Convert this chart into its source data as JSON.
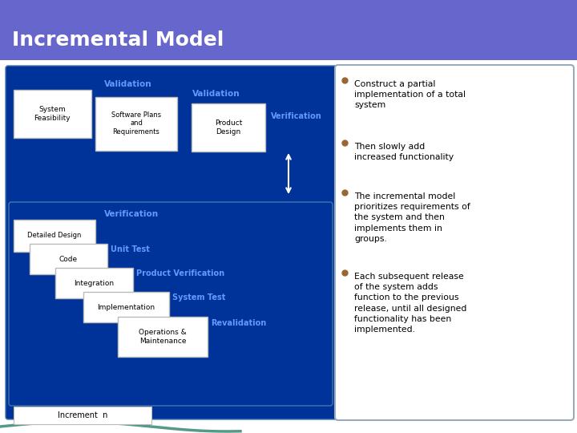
{
  "title": "Incremental Model",
  "title_bg": "#6666CC",
  "title_color": "#FFFFFF",
  "title_fontsize": 18,
  "slide_bg": "#FFFFFF",
  "diagram_bg": "#003399",
  "right_panel_bg": "#FFFFFF",
  "bullet_marker_color": "#996633",
  "bullet_points": [
    "Construct a partial\nimplementation of a total\nsystem",
    "Then slowly add\nincreased functionality",
    "The incremental model\nprioritizes requirements of\nthe system and then\nimplements them in\ngroups.",
    "Each subsequent release\nof the system adds\nfunction to the previous\nrelease, until all designed\nfunctionality has been\nimplemented."
  ],
  "box_labels_top": [
    "System\nFeasibility",
    "Software Plans\nand\nRequirements",
    "Product\nDesign"
  ],
  "box_labels_bottom": [
    "Detailed Design",
    "Code",
    "Integration",
    "Implementation",
    "Operations &\nMaintenance"
  ],
  "label_validation1": "Validation",
  "label_validation2": "Validation",
  "label_verification_top": "Verification",
  "label_verification_bot": "Verification",
  "label_unit_test": "Unit Test",
  "label_product_ver": "Product Verification",
  "label_system_test": "System Test",
  "label_revalidation": "Revalidation",
  "label_increment": "Increment  n",
  "label_color_blue": "#6699FF",
  "white_box": "#FFFFFF",
  "text_dark": "#000000",
  "divider_color": "#AAAACC",
  "teal_color": "#559988",
  "inner_box_border": "#4477AA",
  "outer_box_border": "#4477AA"
}
